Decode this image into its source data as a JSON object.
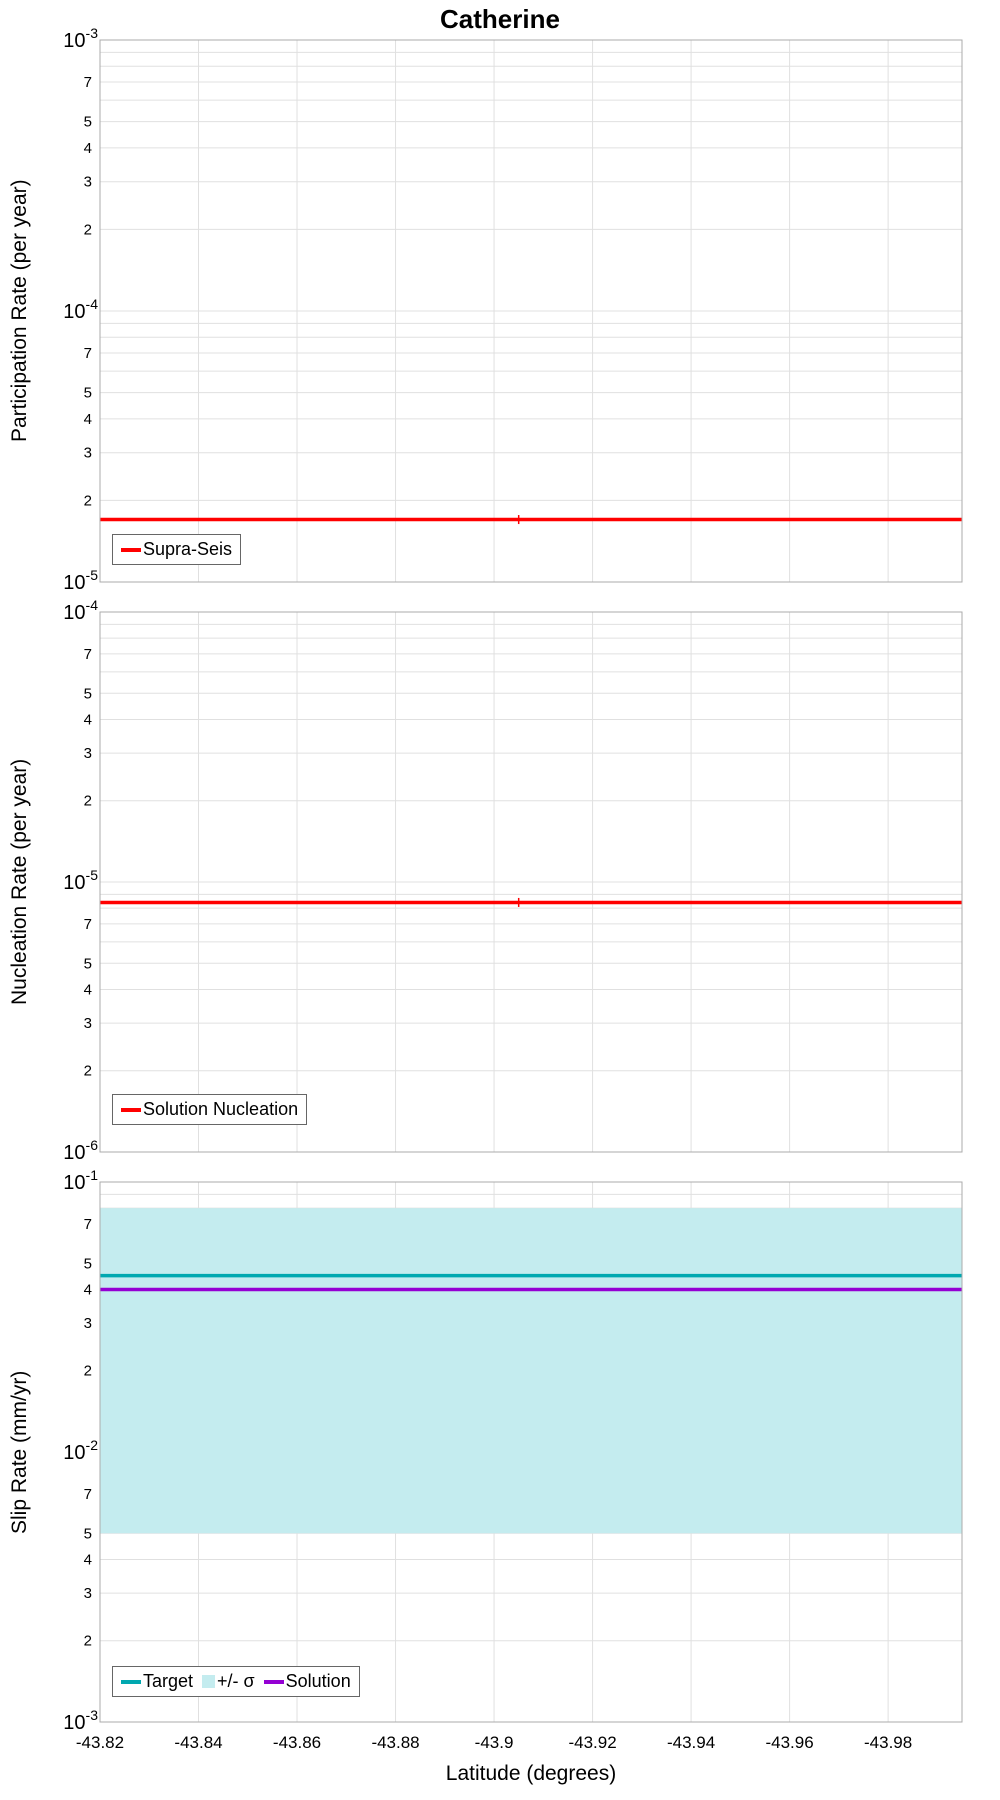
{
  "title": "Catherine",
  "xlabel": "Latitude (degrees)",
  "chart_data": [
    {
      "type": "line",
      "ylabel": "Participation Rate (per year)",
      "yscale": "log",
      "ylim": [
        1e-05,
        0.001
      ],
      "xlim": [
        -43.82,
        -43.995
      ],
      "xticks": [
        -43.82,
        -43.84,
        -43.86,
        -43.88,
        -43.9,
        -43.92,
        -43.94,
        -43.96,
        -43.98
      ],
      "y_minor_labels": [
        2,
        3,
        4,
        5,
        7
      ],
      "grid": true,
      "series": [
        {
          "name": "Supra-Seis",
          "type": "hline",
          "y": 1.7e-05,
          "color": "#ff0000",
          "notch_x": -43.905
        }
      ],
      "legend": {
        "position": "bottom-left",
        "items": [
          {
            "label": "Supra-Seis",
            "color": "#ff0000",
            "swatch": "line"
          }
        ]
      }
    },
    {
      "type": "line",
      "ylabel": "Nucleation Rate (per year)",
      "yscale": "log",
      "ylim": [
        1e-06,
        0.0001
      ],
      "xlim": [
        -43.82,
        -43.995
      ],
      "xticks": [
        -43.82,
        -43.84,
        -43.86,
        -43.88,
        -43.9,
        -43.92,
        -43.94,
        -43.96,
        -43.98
      ],
      "y_minor_labels": [
        2,
        3,
        4,
        5,
        7
      ],
      "grid": true,
      "series": [
        {
          "name": "Solution Nucleation",
          "type": "hline",
          "y": 8.4e-06,
          "color": "#ff0000",
          "notch_x": -43.905
        }
      ],
      "legend": {
        "position": "bottom-left",
        "items": [
          {
            "label": "Solution Nucleation",
            "color": "#ff0000",
            "swatch": "line"
          }
        ]
      }
    },
    {
      "type": "line",
      "ylabel": "Slip Rate (mm/yr)",
      "yscale": "log",
      "ylim": [
        0.001,
        0.1
      ],
      "xlim": [
        -43.82,
        -43.995
      ],
      "xticks": [
        -43.82,
        -43.84,
        -43.86,
        -43.88,
        -43.9,
        -43.92,
        -43.94,
        -43.96,
        -43.98
      ],
      "y_minor_labels": [
        2,
        3,
        4,
        5,
        7
      ],
      "grid": true,
      "series": [
        {
          "name": "+/- sigma band",
          "type": "band",
          "y_lo": 0.005,
          "y_hi": 0.08,
          "color": "#c4ecef"
        },
        {
          "name": "Target",
          "type": "hline",
          "y": 0.045,
          "color": "#00a8b0"
        },
        {
          "name": "Solution",
          "type": "hline",
          "y": 0.04,
          "color": "#9400d3"
        }
      ],
      "legend": {
        "position": "bottom-left",
        "items": [
          {
            "label": "Target",
            "color": "#00a8b0",
            "swatch": "line"
          },
          {
            "label": "+/- σ",
            "color": "#c4ecef",
            "swatch": "patch"
          },
          {
            "label": "Solution",
            "color": "#9400d3",
            "swatch": "line"
          }
        ]
      }
    }
  ],
  "style": {
    "grid_color": "#e0e0e0",
    "border_color": "#ababab",
    "line_width": 3.5
  }
}
